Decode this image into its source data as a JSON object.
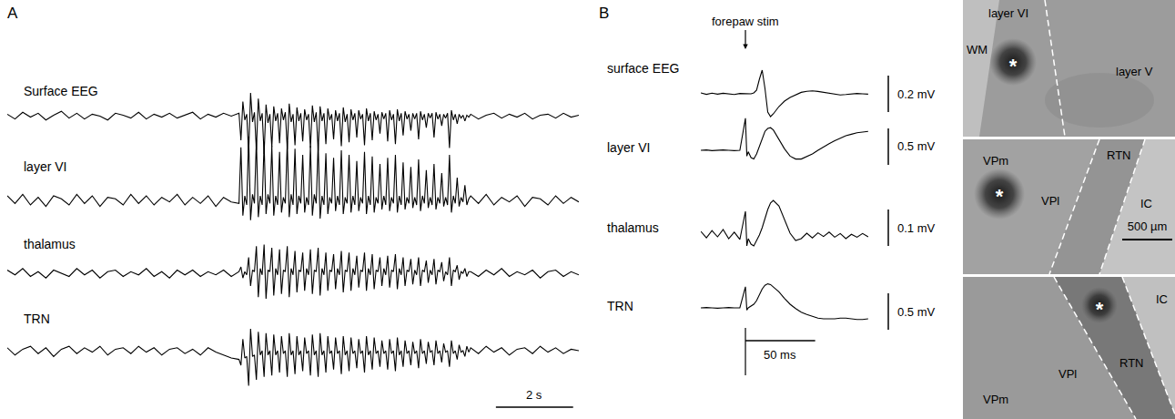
{
  "chart_data": [
    {
      "type": "line",
      "panel": "A",
      "color": "#000000",
      "tick_labels": false,
      "xlim": [
        0,
        14.8
      ],
      "x": [
        0,
        0.2,
        0.4,
        0.6,
        0.8,
        1,
        1.2,
        1.4,
        1.6,
        1.8,
        2,
        2.2,
        2.4,
        2.6,
        2.8,
        3,
        3.2,
        3.4,
        3.6,
        3.8,
        4,
        4.2,
        4.4,
        4.6,
        4.8,
        5,
        5.2,
        5.4,
        5.6,
        5.8,
        6,
        6.05,
        6.1,
        6.15,
        6.2,
        6.25,
        6.3,
        6.35,
        6.4,
        6.45,
        6.5,
        6.55,
        6.6,
        6.65,
        6.7,
        6.75,
        6.8,
        6.85,
        6.9,
        6.95,
        7,
        7.05,
        7.1,
        7.15,
        7.2,
        7.25,
        7.3,
        7.35,
        7.4,
        7.45,
        7.5,
        7.55,
        7.6,
        7.65,
        7.7,
        7.75,
        7.8,
        7.85,
        7.9,
        7.95,
        8,
        8.05,
        8.1,
        8.15,
        8.2,
        8.25,
        8.3,
        8.35,
        8.4,
        8.45,
        8.5,
        8.55,
        8.6,
        8.65,
        8.7,
        8.75,
        8.8,
        8.85,
        8.9,
        8.95,
        9,
        9.05,
        9.1,
        9.15,
        9.2,
        9.25,
        9.3,
        9.35,
        9.4,
        9.45,
        9.5,
        9.55,
        9.6,
        9.65,
        9.7,
        9.75,
        9.8,
        9.85,
        9.9,
        9.95,
        10,
        10.05,
        10.1,
        10.15,
        10.2,
        10.25,
        10.3,
        10.35,
        10.4,
        10.45,
        10.5,
        10.55,
        10.6,
        10.65,
        10.7,
        10.75,
        10.8,
        10.85,
        10.9,
        10.95,
        11,
        11.05,
        11.1,
        11.15,
        11.2,
        11.25,
        11.3,
        11.35,
        11.4,
        11.45,
        11.5,
        11.55,
        11.6,
        11.65,
        11.7,
        11.75,
        11.8,
        11.85,
        11.9,
        11.95,
        12,
        12.2,
        12.4,
        12.6,
        12.8,
        13,
        13.2,
        13.4,
        13.6,
        13.8,
        14,
        14.2,
        14.4,
        14.6,
        14.8
      ],
      "series": [
        {
          "name": "Surface EEG",
          "ylim": [
            -4,
            4
          ],
          "values": [
            0.2,
            -0.3,
            0.4,
            -0.1,
            0.3,
            -0.4,
            0.1,
            0.5,
            -0.2,
            0.3,
            -0.3,
            0.2,
            0,
            -0.4,
            0.3,
            0.1,
            -0.2,
            0.4,
            -0.3,
            0.2,
            -0.1,
            0.3,
            -0.2,
            0.1,
            0.4,
            -0.3,
            0.2,
            -0.1,
            0.3,
            0,
            0.3,
            -2.5,
            1.5,
            -0.4,
            0.2,
            -3.8,
            2.4,
            -0.6,
            0.4,
            -3.5,
            1.8,
            -0.5,
            0.3,
            -3.9,
            1.2,
            -0.7,
            0.2,
            -3.2,
            1.0,
            -0.5,
            0.3,
            -2.8,
            0.8,
            -0.4,
            0.4,
            -3.4,
            1.3,
            -0.6,
            0.2,
            -3.0,
            0.9,
            -0.5,
            0.3,
            -2.6,
            0.7,
            -0.4,
            0.2,
            -3.3,
            1.1,
            -0.6,
            0.4,
            -3.6,
            1.0,
            -0.5,
            0.3,
            -2.9,
            0.8,
            -0.4,
            0.2,
            -2.4,
            0.6,
            -0.5,
            0.3,
            -3.1,
            0.9,
            -0.6,
            0.2,
            -2.7,
            0.7,
            -0.4,
            0.3,
            -2.2,
            0.6,
            -0.3,
            0.2,
            -3.0,
            0.8,
            -0.5,
            0.3,
            -2.5,
            0.5,
            -0.4,
            0.2,
            -1.8,
            0.4,
            -0.3,
            0.3,
            -2.6,
            0.6,
            -0.4,
            0.2,
            -2.9,
            0.7,
            -0.5,
            0.3,
            -2.0,
            0.5,
            -0.3,
            0.2,
            -1.5,
            0.3,
            -0.3,
            0.3,
            -2.4,
            0.5,
            -0.4,
            0.2,
            -1.2,
            0.3,
            -0.2,
            0.3,
            -2.2,
            0.4,
            -0.3,
            0.2,
            -1.0,
            0.2,
            -0.2,
            0.3,
            -3.3,
            0.6,
            -0.4,
            0.2,
            -0.8,
            0.2,
            -0.2,
            0.1,
            -0.5,
            0.1,
            -0.1,
            0.2,
            -0.3,
            0.1,
            0.3,
            -0.2,
            0.2,
            -0.1,
            0.3,
            -0.3,
            0.1,
            0.2,
            -0.2,
            0.3,
            -0.1,
            0.1
          ]
        },
        {
          "name": "layer VI",
          "ylim": [
            -1.5,
            4.5
          ],
          "values": [
            0.3,
            -0.2,
            0.4,
            -0.3,
            0.2,
            -0.4,
            0.3,
            0.1,
            -0.3,
            0.4,
            -0.2,
            0.3,
            -0.4,
            0.2,
            0.1,
            -0.3,
            0.4,
            -0.2,
            0.3,
            -0.3,
            0.2,
            -0.1,
            0.4,
            -0.3,
            0.2,
            -0.2,
            0.3,
            -0.4,
            0.2,
            -0.1,
            -0.2,
            3.5,
            -1.0,
            0.3,
            -0.3,
            4.2,
            -1.3,
            0.4,
            -0.2,
            4.0,
            -1.1,
            0.3,
            -0.3,
            3.8,
            -0.9,
            0.4,
            -0.2,
            3.6,
            -1.0,
            0.3,
            -0.3,
            3.2,
            -0.8,
            0.2,
            -0.2,
            3.9,
            -1.1,
            0.4,
            -0.3,
            3.4,
            -0.9,
            0.3,
            -0.2,
            3.0,
            -0.8,
            0.2,
            -0.3,
            3.6,
            -1.0,
            0.4,
            -0.2,
            3.8,
            -1.2,
            0.3,
            -0.3,
            3.1,
            -0.9,
            0.2,
            -0.2,
            2.8,
            -0.7,
            0.3,
            -0.3,
            3.3,
            -0.9,
            0.2,
            -0.2,
            3.0,
            -0.8,
            0.3,
            -0.3,
            2.6,
            -0.7,
            0.2,
            -0.2,
            3.2,
            -0.9,
            0.3,
            -0.3,
            2.9,
            -0.8,
            0.2,
            -0.2,
            2.4,
            -0.6,
            0.3,
            -0.3,
            2.8,
            -0.7,
            0.2,
            -0.2,
            3.0,
            -0.8,
            0.3,
            -0.3,
            2.5,
            -0.6,
            0.2,
            -0.2,
            2.2,
            -0.5,
            0.2,
            -0.3,
            2.7,
            -0.7,
            0.3,
            -0.2,
            2.0,
            -0.5,
            0.2,
            -0.3,
            2.4,
            -0.6,
            0.2,
            -0.2,
            1.8,
            -0.4,
            0.2,
            -0.3,
            3.0,
            -0.8,
            0.3,
            -0.2,
            1.5,
            -0.4,
            0.2,
            -0.1,
            1.0,
            -0.3,
            0.1,
            0.3,
            -0.2,
            0.4,
            -0.3,
            0.2,
            -0.1,
            0.3,
            -0.4,
            0.2,
            0.1,
            -0.3,
            0.3,
            -0.2,
            0.2,
            -0.1
          ]
        },
        {
          "name": "thalamus",
          "ylim": [
            -2,
            2
          ],
          "values": [
            0.2,
            -0.1,
            0.3,
            -0.2,
            0.1,
            -0.3,
            0.2,
            0,
            -0.2,
            0.3,
            -0.1,
            0.2,
            -0.3,
            0.1,
            0.2,
            -0.2,
            0.1,
            -0.1,
            0.3,
            -0.2,
            0.1,
            -0.3,
            0.2,
            -0.1,
            0.2,
            -0.2,
            0.1,
            -0.1,
            0.2,
            -0.2,
            0.1,
            0.4,
            -0.3,
            0.1,
            -0.1,
            1.0,
            -0.8,
            0.2,
            0.1,
            1.7,
            -1.5,
            0.3,
            -0.1,
            1.8,
            -1.6,
            0.2,
            0.1,
            1.6,
            -1.4,
            0.3,
            -0.1,
            1.5,
            -1.3,
            0.2,
            0.1,
            1.7,
            -1.5,
            0.3,
            -0.1,
            1.4,
            -1.2,
            0.2,
            0.1,
            1.3,
            -1.1,
            0.3,
            -0.1,
            1.5,
            -1.3,
            0.2,
            0.1,
            1.6,
            -1.4,
            0.3,
            -0.1,
            1.3,
            -1.1,
            0.2,
            0.1,
            1.2,
            -1.0,
            0.3,
            -0.1,
            1.4,
            -1.2,
            0.2,
            0.1,
            1.3,
            -1.1,
            0.3,
            -0.1,
            1.1,
            -0.9,
            0.2,
            0.1,
            1.3,
            -1.1,
            0.3,
            -0.1,
            1.2,
            -1.0,
            0.2,
            0.1,
            1.0,
            -0.8,
            0.3,
            -0.1,
            1.1,
            -0.9,
            0.2,
            0.1,
            1.2,
            -1.0,
            0.3,
            -0.1,
            1.0,
            -0.8,
            0.2,
            0.1,
            0.9,
            -0.7,
            0.2,
            -0.1,
            1.0,
            -0.8,
            0.2,
            0.1,
            0.8,
            -0.6,
            0.2,
            -0.1,
            0.9,
            -0.7,
            0.2,
            0.1,
            0.7,
            -0.5,
            0.1,
            -0.1,
            1.0,
            -0.8,
            0.2,
            0.1,
            0.5,
            -0.4,
            0.1,
            0,
            0.3,
            -0.2,
            0.1,
            0.1,
            -0.2,
            0.2,
            -0.1,
            0.3,
            -0.2,
            0.1,
            -0.1,
            0.2,
            -0.3,
            0.1,
            0.2,
            -0.2,
            0.1,
            -0.1
          ]
        },
        {
          "name": "TRN",
          "ylim": [
            -2.5,
            2.5
          ],
          "values": [
            0.2,
            -0.3,
            0.1,
            0.3,
            -0.2,
            0.2,
            -0.4,
            0.1,
            0.3,
            -0.2,
            0.2,
            -0.1,
            0.3,
            -0.3,
            0.1,
            0.2,
            -0.2,
            0.3,
            -0.1,
            0.2,
            -0.3,
            0.1,
            0.2,
            -0.2,
            0.1,
            -0.3,
            0.2,
            -0.1,
            -0.3,
            -0.5,
            -0.6,
            -1.0,
            0.8,
            -0.5,
            -0.4,
            -2.4,
            1.5,
            -0.4,
            -0.3,
            -2.0,
            1.3,
            -0.3,
            0,
            -1.8,
            1.2,
            -0.3,
            0,
            -1.7,
            1.1,
            -0.3,
            0,
            -1.5,
            1.0,
            -0.2,
            0,
            -1.8,
            1.2,
            -0.3,
            0,
            -1.6,
            1.0,
            -0.3,
            0,
            -1.4,
            0.9,
            -0.2,
            0,
            -1.7,
            1.1,
            -0.3,
            0,
            -1.8,
            1.2,
            -0.3,
            0,
            -1.5,
            1.0,
            -0.2,
            0,
            -1.3,
            0.9,
            -0.2,
            0,
            -1.6,
            1.0,
            -0.3,
            0,
            -1.4,
            0.9,
            -0.2,
            0,
            -1.2,
            0.8,
            -0.2,
            0,
            -1.5,
            1.0,
            -0.3,
            0,
            -1.3,
            0.9,
            -0.2,
            0,
            -1.1,
            0.7,
            -0.2,
            0,
            -1.3,
            0.8,
            -0.2,
            0,
            -1.4,
            0.9,
            -0.3,
            0,
            -1.1,
            0.7,
            -0.2,
            0,
            -1.0,
            0.6,
            -0.2,
            0,
            -1.2,
            0.8,
            -0.2,
            0,
            -0.9,
            0.6,
            -0.1,
            0,
            -1.0,
            0.7,
            -0.2,
            0,
            -0.8,
            0.5,
            -0.1,
            0,
            -1.1,
            0.7,
            -0.2,
            0,
            -0.6,
            0.4,
            -0.1,
            0,
            -0.4,
            0.3,
            -0.1,
            0.2,
            -0.2,
            0.3,
            -0.1,
            0.2,
            -0.3,
            0.1,
            0.2,
            -0.2,
            0.3,
            -0.1,
            0.2,
            -0.2,
            0.1,
            0
          ]
        }
      ],
      "scale_bars": [
        {
          "value": 2,
          "label": "2 s"
        }
      ]
    },
    {
      "type": "line",
      "panel": "B",
      "color": "#000000",
      "tick_labels": false,
      "xlim": [
        -32,
        92
      ],
      "x": [
        -32,
        -28,
        -24,
        -20,
        -16,
        -12,
        -8,
        -4,
        0,
        1,
        2,
        4,
        6,
        8,
        10,
        12,
        14,
        16,
        18,
        20,
        24,
        28,
        32,
        36,
        40,
        44,
        48,
        52,
        56,
        60,
        64,
        68,
        72,
        76,
        80,
        84,
        88
      ],
      "annotations": [
        {
          "text": "forepaw stim",
          "x": 0
        }
      ],
      "series": [
        {
          "name": "surface EEG",
          "ylim": [
            -0.2,
            0.2
          ],
          "scale_bar": {
            "value": 0.2,
            "label": "0.2 mV"
          },
          "values": [
            0.005,
            -0.003,
            0.004,
            -0.002,
            0.003,
            0,
            -0.004,
            0.002,
            0,
            0,
            0,
            0,
            0.005,
            0.02,
            0.08,
            0.13,
            0.03,
            -0.1,
            -0.125,
            -0.11,
            -0.07,
            -0.04,
            -0.02,
            -0.005,
            0.008,
            0.014,
            0.016,
            0.013,
            0.008,
            0.002,
            -0.004,
            -0.006,
            -0.004,
            -0.001,
            0.002,
            0,
            -0.002
          ]
        },
        {
          "name": "layer VI",
          "ylim": [
            -0.45,
            0.55
          ],
          "scale_bar": {
            "value": 0.5,
            "label": "0.5 mV"
          },
          "values": [
            0,
            0.005,
            -0.005,
            0,
            0.005,
            0,
            -0.005,
            0,
            0.44,
            -0.08,
            -0.02,
            -0.1,
            -0.12,
            -0.05,
            0.05,
            0.16,
            0.26,
            0.3,
            0.31,
            0.28,
            0.15,
            0.02,
            -0.08,
            -0.12,
            -0.12,
            -0.09,
            -0.05,
            0,
            0.05,
            0.09,
            0.13,
            0.17,
            0.2,
            0.22,
            0.24,
            0.25,
            0.26
          ]
        },
        {
          "name": "thalamus",
          "ylim": [
            -0.08,
            0.12
          ],
          "scale_bar": {
            "value": 0.1,
            "label": "0.1 mV"
          },
          "values": [
            0.01,
            -0.008,
            0.012,
            -0.005,
            0.015,
            -0.01,
            0.008,
            -0.012,
            0.065,
            -0.03,
            -0.01,
            -0.025,
            -0.03,
            -0.015,
            0,
            0.02,
            0.045,
            0.07,
            0.088,
            0.095,
            0.08,
            0.04,
            0.005,
            -0.015,
            -0.01,
            0.005,
            -0.008,
            0.006,
            -0.004,
            0.008,
            -0.006,
            0.004,
            -0.01,
            0.002,
            -0.006,
            0.004,
            -0.005
          ]
        },
        {
          "name": "TRN",
          "ylim": [
            -0.55,
            0.45
          ],
          "scale_bar": {
            "value": 0.5,
            "label": "0.5 mV"
          },
          "values": [
            0,
            0.005,
            0,
            -0.005,
            0,
            0.005,
            0,
            0,
            0.29,
            -0.03,
            0,
            0.02,
            0.05,
            0.1,
            0.18,
            0.26,
            0.31,
            0.33,
            0.32,
            0.29,
            0.22,
            0.13,
            0.05,
            -0.01,
            -0.06,
            -0.09,
            -0.12,
            -0.14,
            -0.15,
            -0.15,
            -0.15,
            -0.14,
            -0.14,
            -0.15,
            -0.16,
            -0.16,
            -0.15
          ]
        }
      ],
      "scale_bars": [
        {
          "value": 50,
          "label": "50 ms"
        }
      ]
    }
  ],
  "histology": [
    {
      "labels": [
        "layer VI",
        "WM",
        "layer V",
        "*"
      ]
    },
    {
      "labels": [
        "VPm",
        "*",
        "VPl",
        "RTN",
        "IC"
      ],
      "scale_bar": {
        "value": 500,
        "label": "500 µm"
      }
    },
    {
      "labels": [
        "VPm",
        "VPl",
        "RTN",
        "IC",
        "*"
      ]
    }
  ]
}
